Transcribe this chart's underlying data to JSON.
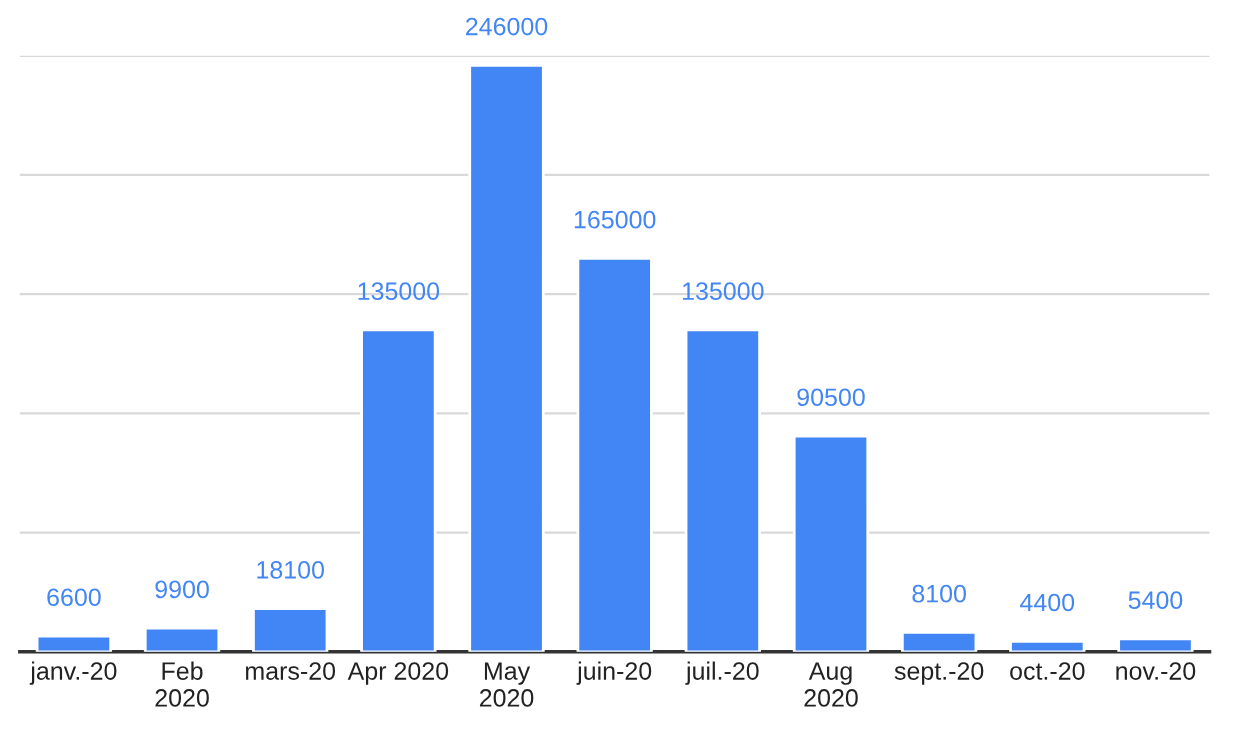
{
  "chart_data": {
    "type": "bar",
    "categories": [
      "janv.-20",
      "Feb\n2020",
      "mars-20",
      "Apr 2020",
      "May\n2020",
      "juin-20",
      "juil.-20",
      "Aug\n2020",
      "sept.-20",
      "oct.-20",
      "nov.-20"
    ],
    "series": [
      {
        "color": "#4285f4",
        "values": [
          6600,
          9900,
          18100,
          135000,
          246000,
          165000,
          135000,
          90500,
          8100,
          4400,
          5400
        ]
      }
    ],
    "data_labels": true,
    "ylim": [
      0,
      250000
    ],
    "yticks": [
      {
        "value": 0,
        "label": null
      },
      {
        "value": 50000,
        "label": null
      },
      {
        "value": 100000,
        "label": null
      },
      {
        "value": 150000,
        "label": null
      },
      {
        "value": 200000,
        "label": null
      },
      {
        "value": 250000,
        "label": null
      }
    ],
    "tick_labels": "x",
    "grid": "y",
    "legend": false
  }
}
